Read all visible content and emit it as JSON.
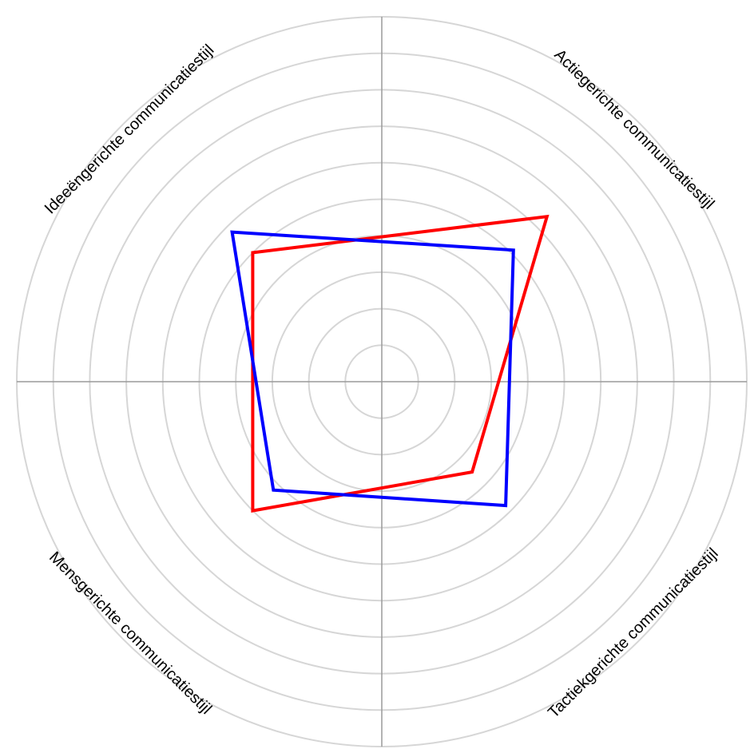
{
  "chart_data": {
    "type": "radar",
    "axes": [
      "Actiegerichte communicatiestijl",
      "Tactiekgerichte communicatiestijl",
      "Mensgerichte communicatiestijl",
      "Ideeëngerichte communicatiestijl"
    ],
    "rlim": [
      0,
      10
    ],
    "rings": [
      1,
      2,
      3,
      4,
      5,
      6,
      7,
      8,
      9,
      10
    ],
    "grid": true,
    "series": [
      {
        "color": "#ff0000",
        "values": [
          6.4,
          3.5,
          5.0,
          5.0
        ]
      },
      {
        "color": "#0000ff",
        "values": [
          5.1,
          4.8,
          4.2,
          5.8
        ]
      }
    ]
  }
}
